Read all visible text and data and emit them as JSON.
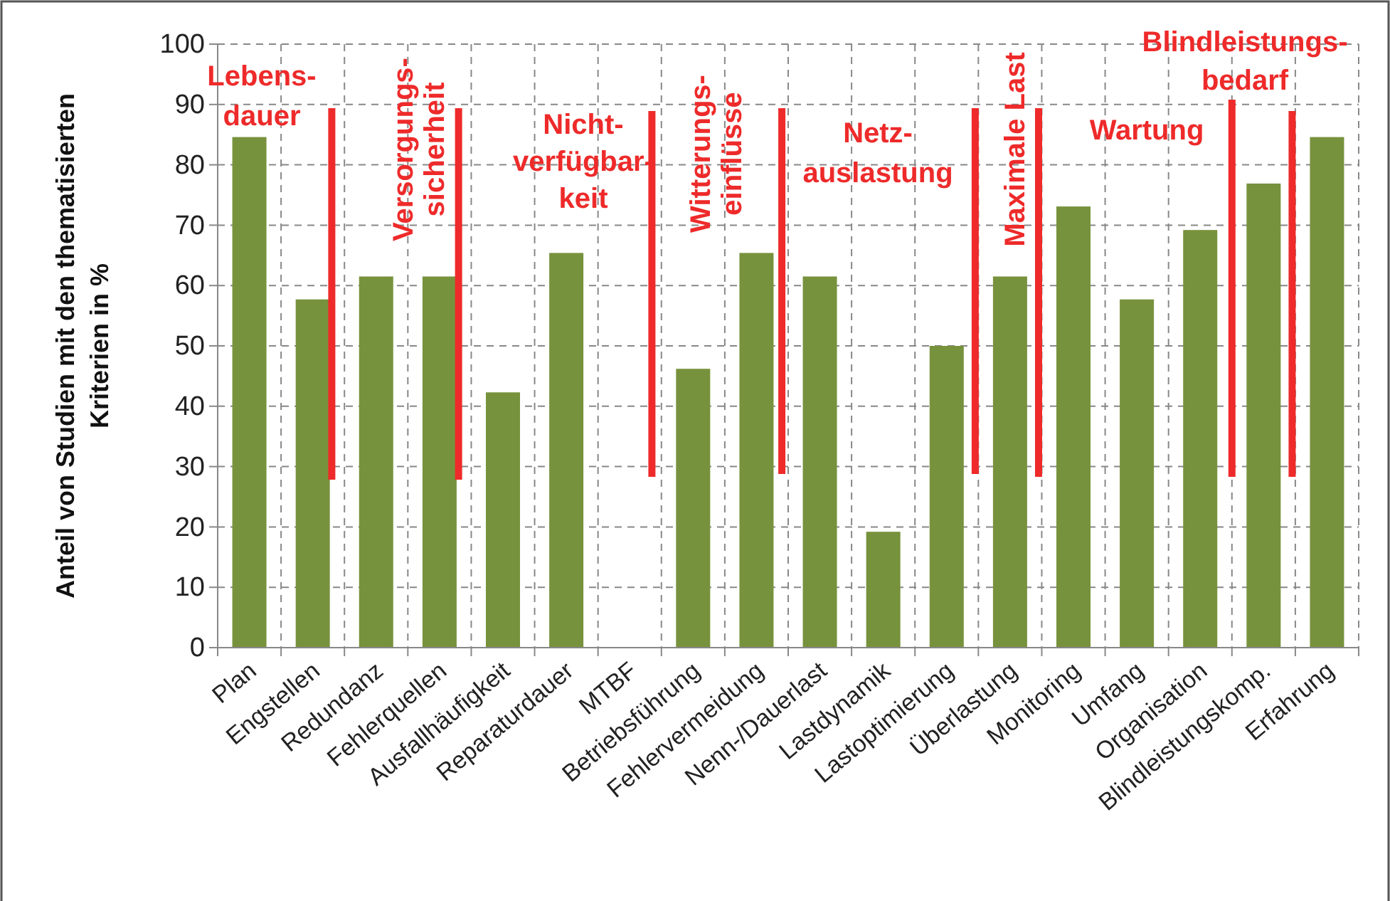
{
  "chart_data": {
    "type": "bar",
    "ylabel": "Anteil von Studien mit den thematisierten\nKriterien in %",
    "categories": [
      "Plan",
      "Engstellen",
      "Redundanz",
      "Fehlerquellen",
      "Ausfallhäufigkeit",
      "Reparaturdauer",
      "MTBF",
      "Betriebsführung",
      "Fehlervermeidung",
      "Nenn-/Dauerlast",
      "Lastdynamik",
      "Lastoptimierung",
      "Überlastung",
      "Monitoring",
      "Umfang",
      "Organisation",
      "Blindleistungskomp.",
      "Erfahrung"
    ],
    "values": [
      84.6,
      57.7,
      61.5,
      61.5,
      42.3,
      65.4,
      0,
      46.2,
      65.4,
      61.5,
      19.2,
      50,
      61.5,
      73.1,
      57.7,
      69.2,
      76.9,
      84.6
    ],
    "color": "#77923c",
    "ylim": [
      0,
      100
    ],
    "yticks": [
      0,
      10,
      20,
      30,
      40,
      50,
      60,
      70,
      80,
      90,
      100
    ],
    "grid": true,
    "annotations": [
      "Lebens-\ndauer",
      "Versorgungs-\nsicherheit",
      "Nicht-\nverfügbar-\nkeit",
      "Witterungs-\neinflüsse",
      "Netz-\nauslastung",
      "Maximale Last",
      "Wartung",
      "Blindleistungs-\nbedarf"
    ]
  }
}
